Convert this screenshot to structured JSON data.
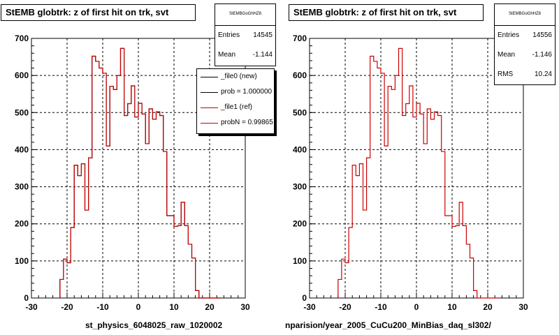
{
  "colors": {
    "new": "#000000",
    "ref": "#cc0000",
    "frame": "#000000"
  },
  "chart_data": [
    {
      "type": "bar",
      "title": "StEMB globtrk: z of first hit on trk, svt",
      "xlim": [
        -30,
        30
      ],
      "ylim": [
        0,
        700
      ],
      "xticks": [
        -30,
        -20,
        -10,
        0,
        10,
        20,
        30
      ],
      "yticks": [
        0,
        100,
        200,
        300,
        400,
        500,
        600,
        700
      ],
      "grid": true,
      "bin_edges": [
        -22,
        -21,
        -20,
        -19,
        -18,
        -17,
        -16,
        -15,
        -14,
        -13,
        -12,
        -11,
        -10,
        -9,
        -8,
        -7,
        -6,
        -5,
        -4,
        -3,
        -2,
        -1,
        0,
        1,
        2,
        3,
        4,
        5,
        6,
        7,
        8,
        9,
        10,
        11,
        12,
        13,
        14,
        15,
        16,
        17,
        18,
        19,
        20,
        21,
        22,
        23
      ],
      "series": [
        {
          "name": "_file0 (new)",
          "values": [
            50,
            105,
            95,
            190,
            358,
            330,
            362,
            237,
            378,
            652,
            638,
            620,
            606,
            410,
            571,
            562,
            600,
            673,
            492,
            524,
            572,
            488,
            525,
            496,
            416,
            510,
            482,
            502,
            492,
            395,
            222,
            222,
            193,
            195,
            258,
            195,
            145,
            108,
            20,
            0,
            0,
            0,
            0,
            0,
            0
          ]
        },
        {
          "name": "_file1 (ref)",
          "values": [
            50,
            105,
            95,
            190,
            358,
            330,
            362,
            237,
            378,
            652,
            638,
            620,
            606,
            410,
            571,
            562,
            600,
            673,
            492,
            524,
            572,
            488,
            525,
            496,
            416,
            510,
            482,
            502,
            492,
            395,
            222,
            222,
            193,
            195,
            258,
            195,
            145,
            108,
            20,
            0,
            0,
            0,
            0,
            0,
            0
          ]
        }
      ],
      "stats": {
        "name": "StEMBGoGhHZ8",
        "entries_label": "Entries",
        "entries": "14545",
        "mean_label": "Mean",
        "mean": "-1.144"
      },
      "legend": [
        {
          "label": "_file0 (new)",
          "color": "#000000"
        },
        {
          "label": "prob = 1.000000",
          "color": "#000000"
        },
        {
          "label": "_file1 (ref)",
          "color": "#cc0000"
        },
        {
          "label": "probN = 0.99865",
          "color": "#cc0000"
        }
      ],
      "bottom_text": "st_physics_6048025_raw_1020002"
    },
    {
      "type": "bar",
      "title": "StEMB globtrk: z of first hit on trk, svt",
      "xlim": [
        -30,
        30
      ],
      "ylim": [
        0,
        700
      ],
      "xticks": [
        -30,
        -20,
        -10,
        0,
        10,
        20,
        30
      ],
      "yticks": [
        0,
        100,
        200,
        300,
        400,
        500,
        600,
        700
      ],
      "grid": true,
      "bin_edges": [
        -22,
        -21,
        -20,
        -19,
        -18,
        -17,
        -16,
        -15,
        -14,
        -13,
        -12,
        -11,
        -10,
        -9,
        -8,
        -7,
        -6,
        -5,
        -4,
        -3,
        -2,
        -1,
        0,
        1,
        2,
        3,
        4,
        5,
        6,
        7,
        8,
        9,
        10,
        11,
        12,
        13,
        14,
        15,
        16,
        17,
        18,
        19,
        20,
        21,
        22,
        23
      ],
      "series": [
        {
          "name": "_file1 (ref)",
          "values": [
            50,
            105,
            95,
            190,
            358,
            330,
            362,
            237,
            378,
            652,
            638,
            620,
            606,
            410,
            571,
            562,
            600,
            673,
            492,
            524,
            572,
            488,
            525,
            496,
            416,
            510,
            482,
            502,
            492,
            395,
            222,
            222,
            193,
            195,
            258,
            195,
            145,
            108,
            20,
            0,
            0,
            0,
            0,
            0,
            0
          ]
        }
      ],
      "stats": {
        "name": "StEMBGoGhHZ8",
        "entries_label": "Entries",
        "entries": "14556",
        "mean_label": "Mean",
        "mean": "-1.146",
        "rms_label": "RMS",
        "rms": "10.24"
      },
      "bottom_text": "nparision/year_2005_CuCu200_MinBias_daq_sl302/"
    }
  ]
}
